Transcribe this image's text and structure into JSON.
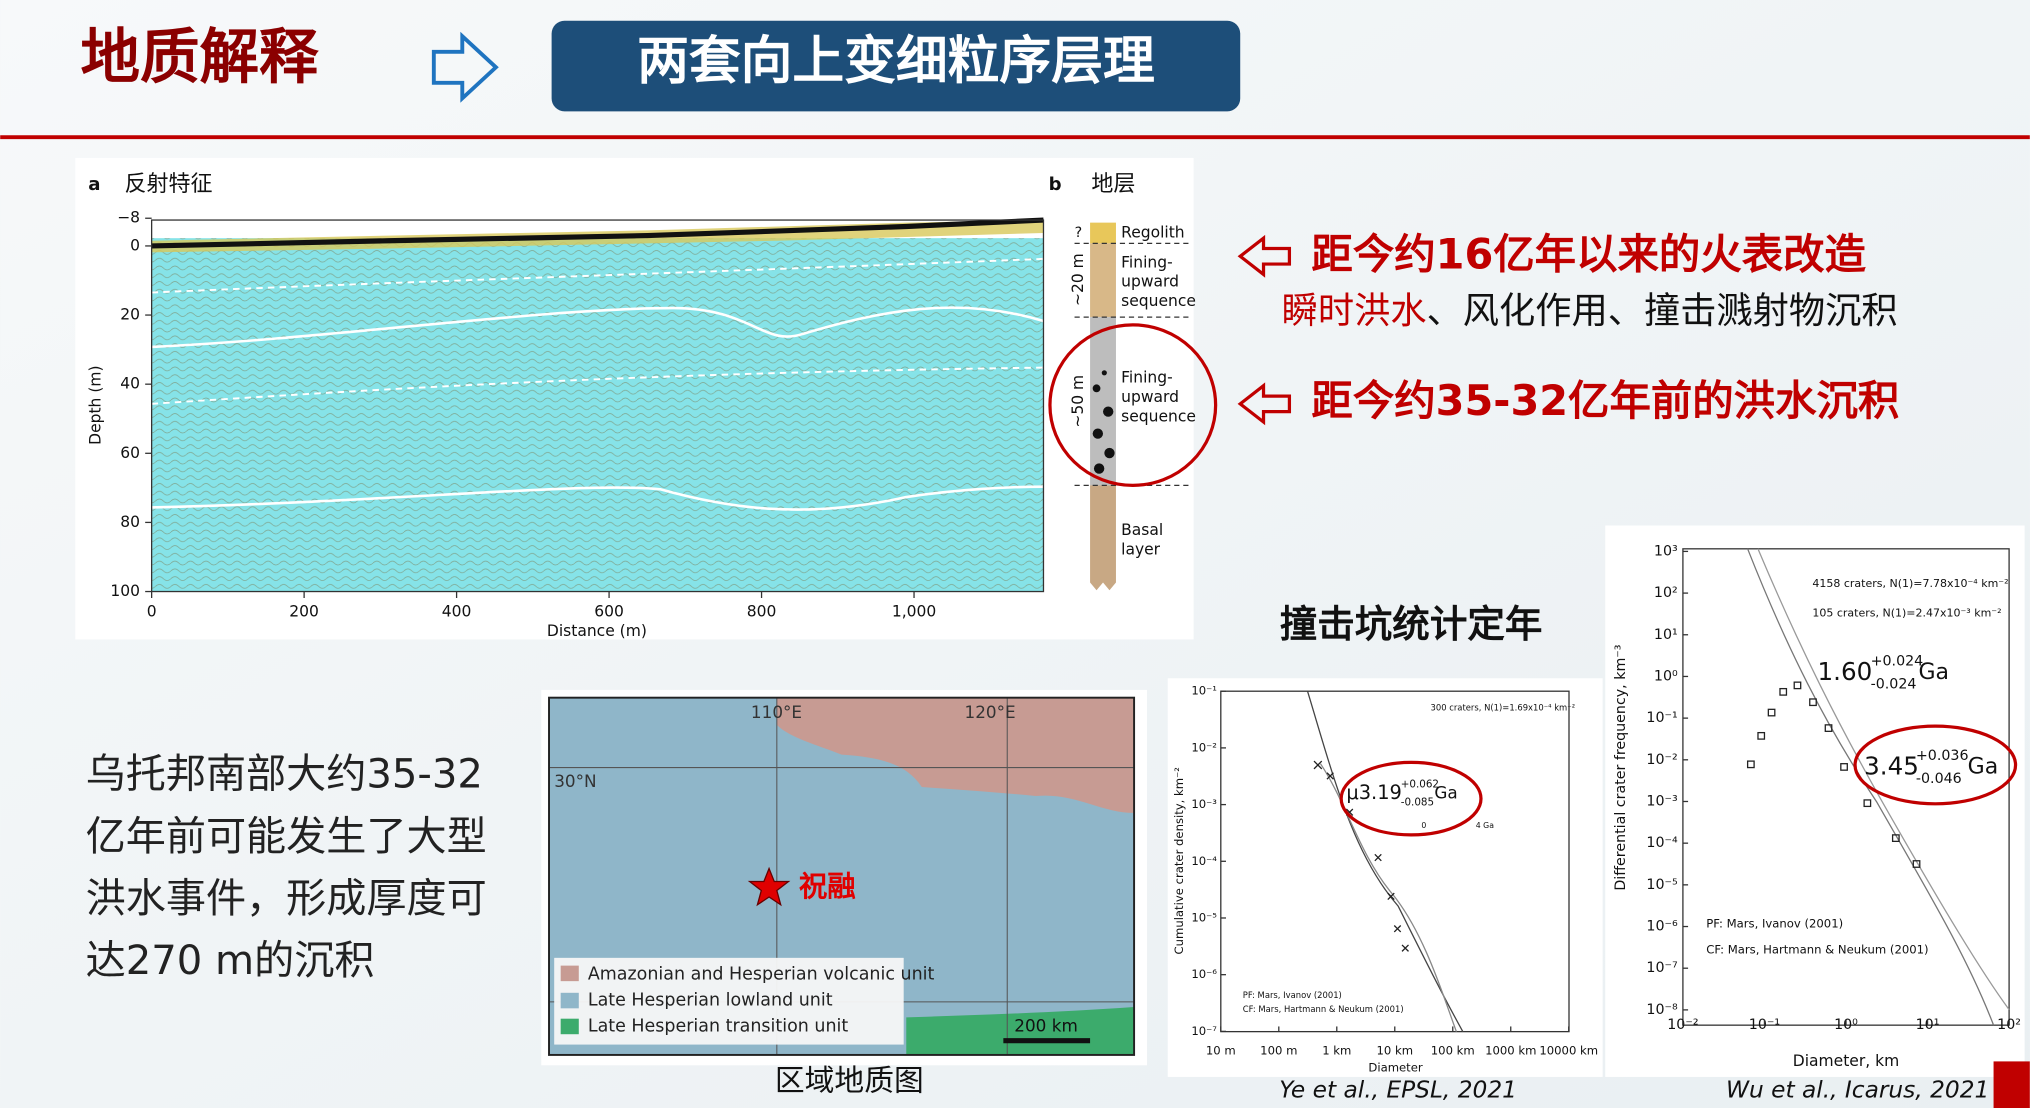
{
  "header": {
    "title": "地质解释",
    "banner": "两套向上变细粒序层理"
  },
  "radar": {
    "panel_a": "a",
    "label_a": "反射特征",
    "panel_b": "b",
    "label_b": "地层",
    "y_label": "Depth (m)",
    "x_label": "Distance (m)",
    "yticks": [
      "−8",
      "0",
      "20",
      "40",
      "60",
      "80",
      "100"
    ],
    "xticks": [
      "0",
      "200",
      "400",
      "600",
      "800",
      "1,000"
    ],
    "column": {
      "unknown": "?",
      "regolith": "Regolith",
      "upper_sequence": [
        "Fining-",
        "upward",
        "sequence"
      ],
      "upper_thickness": "~20 m",
      "lower_sequence": [
        "Fining-",
        "upward",
        "sequence"
      ],
      "lower_thickness": "~50 m",
      "basal": [
        "Basal",
        "layer"
      ]
    }
  },
  "notes": {
    "recent": "距今约16亿年以来的火表改造",
    "processes_highlight": "瞬时洪水",
    "processes_rest": "、风化作用、撞击溅射物沉积",
    "ancient": "距今约35-32亿年前的洪水沉积"
  },
  "summary": [
    "乌托邦南部大约35-32",
    "亿年前可能发生了大型",
    "洪水事件，形成厚度可",
    "达270 m的沉积"
  ],
  "map": {
    "lon1": "110°E",
    "lon2": "120°E",
    "lat": "30°N",
    "site": "祝融",
    "legend": [
      "Amazonian and Hesperian volcanic unit",
      "Late Hesperian lowland unit",
      "Late Hesperian transition unit"
    ],
    "scale": "200 km",
    "caption": "区域地质图"
  },
  "crater": {
    "title": "撞击坑统计定年",
    "plot1": {
      "legend": "300 craters, N(1)=1.69x10⁻⁴ km⁻²",
      "age": "μ3.19",
      "age_plus": "+0.062",
      "age_minus": "-0.085",
      "unit": "Ga",
      "inset_ticks": [
        "0",
        "4 Ga"
      ],
      "y_label": "Cumulative crater density, km⁻²",
      "x_label": "Diameter",
      "yticks": [
        "10⁻¹",
        "10⁻²",
        "10⁻³",
        "10⁻⁴",
        "10⁻⁵",
        "10⁻⁶",
        "10⁻⁷"
      ],
      "xticks": [
        "10 m",
        "100 m",
        "1 km",
        "10 km",
        "100 km",
        "1000 km",
        "10000 km"
      ],
      "notes": [
        "PF: Mars, Ivanov (2001)",
        "CF: Mars, Hartmann & Neukum (2001)"
      ],
      "citation": "Ye et al., EPSL, 2021"
    },
    "plot2": {
      "legend": [
        "4158 craters, N(1)=7.78x10⁻⁴ km⁻²",
        "105 craters, N(1)=2.47x10⁻³ km⁻²"
      ],
      "age1": "1.60",
      "age1_plus": "+0.024",
      "age1_minus": "-0.024",
      "age2": "3.45",
      "age2_plus": "+0.036",
      "age2_minus": "-0.046",
      "unit": "Ga",
      "y_label": "Differential crater frequency, km⁻³",
      "x_label": "Diameter, km",
      "yticks": [
        "10³",
        "10²",
        "10¹",
        "10⁰",
        "10⁻¹",
        "10⁻²",
        "10⁻³",
        "10⁻⁴",
        "10⁻⁵",
        "10⁻⁶",
        "10⁻⁷",
        "10⁻⁸"
      ],
      "xticks": [
        "10⁻²",
        "10⁻¹",
        "10⁰",
        "10¹",
        "10²"
      ],
      "notes": [
        "PF: Mars, Ivanov (2001)",
        "CF: Mars, Hartmann & Neukum (2001)"
      ],
      "citation": "Wu et al., Icarus, 2021"
    }
  }
}
